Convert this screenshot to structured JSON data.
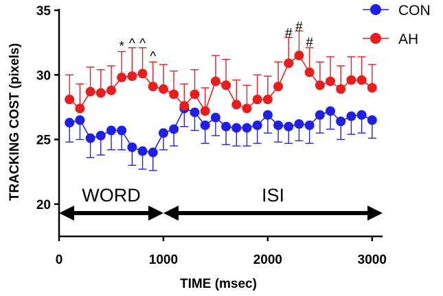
{
  "chart_data": {
    "type": "line",
    "title": "",
    "xlabel": "TIME (msec)",
    "ylabel": "TRACKING COST (pixels)",
    "xlim": [
      0,
      3100
    ],
    "ylim": [
      17.5,
      35
    ],
    "xticks": [
      0,
      1000,
      2000,
      3000
    ],
    "yticks": [
      20,
      25,
      30,
      35
    ],
    "x": [
      100,
      200,
      300,
      400,
      500,
      600,
      700,
      800,
      900,
      1000,
      1100,
      1200,
      1300,
      1400,
      1500,
      1600,
      1700,
      1800,
      1900,
      2000,
      2100,
      2200,
      2300,
      2400,
      2500,
      2600,
      2700,
      2800,
      2900,
      3000
    ],
    "series": [
      {
        "name": "CON",
        "color": "#1f1fe6",
        "values": [
          26.3,
          26.5,
          25.1,
          25.3,
          25.7,
          25.7,
          24.4,
          24.1,
          24.0,
          25.5,
          25.8,
          27.4,
          27.1,
          26.1,
          26.7,
          26.0,
          25.9,
          25.9,
          26.1,
          26.9,
          26.1,
          26.0,
          26.2,
          26.1,
          26.9,
          27.2,
          26.4,
          26.8,
          26.9,
          26.5
        ],
        "error": [
          1.5,
          1.5,
          1.5,
          1.5,
          1.5,
          1.5,
          1.4,
          1.4,
          1.4,
          1.3,
          1.3,
          1.4,
          1.4,
          1.4,
          1.4,
          1.4,
          1.4,
          1.4,
          1.4,
          1.4,
          1.3,
          1.3,
          1.3,
          1.4,
          1.4,
          1.4,
          1.4,
          1.4,
          1.4,
          1.4
        ]
      },
      {
        "name": "AH",
        "color": "#e61e1e",
        "values": [
          28.1,
          27.4,
          28.7,
          28.6,
          28.8,
          29.8,
          29.9,
          30.1,
          29.1,
          28.9,
          28.5,
          27.6,
          28.5,
          27.2,
          29.5,
          29.2,
          27.7,
          27.4,
          28.1,
          28.1,
          29.1,
          30.9,
          31.5,
          30.2,
          29.2,
          29.5,
          28.9,
          29.6,
          29.6,
          29.0
        ],
        "error": [
          1.9,
          1.9,
          1.9,
          1.8,
          1.9,
          2.0,
          2.2,
          2.0,
          1.9,
          1.9,
          1.8,
          1.7,
          1.9,
          1.8,
          2.0,
          2.0,
          1.9,
          1.8,
          1.9,
          1.8,
          1.9,
          2.0,
          1.9,
          1.9,
          1.8,
          1.9,
          1.8,
          1.8,
          1.8,
          1.8
        ]
      }
    ],
    "legend": {
      "position": "top-right",
      "entries": [
        "CON",
        "AH"
      ]
    },
    "annotations": [
      {
        "text": "*",
        "x": 600,
        "y": 31.9
      },
      {
        "text": "^",
        "x": 700,
        "y": 32.1
      },
      {
        "text": "^",
        "x": 800,
        "y": 32.1
      },
      {
        "text": "^",
        "x": 900,
        "y": 31.1
      },
      {
        "text": "#",
        "x": 2200,
        "y": 32.9
      },
      {
        "text": "#",
        "x": 2300,
        "y": 33.4
      },
      {
        "text": "#",
        "x": 2400,
        "y": 32.2
      }
    ],
    "periods": [
      {
        "label": "WORD",
        "x_start": 0,
        "x_end": 1000,
        "y": 19.3,
        "label_y": 20.2
      },
      {
        "label": "ISI",
        "x_start": 1000,
        "x_end": 3100,
        "y": 19.3,
        "label_y": 20.2
      }
    ]
  }
}
